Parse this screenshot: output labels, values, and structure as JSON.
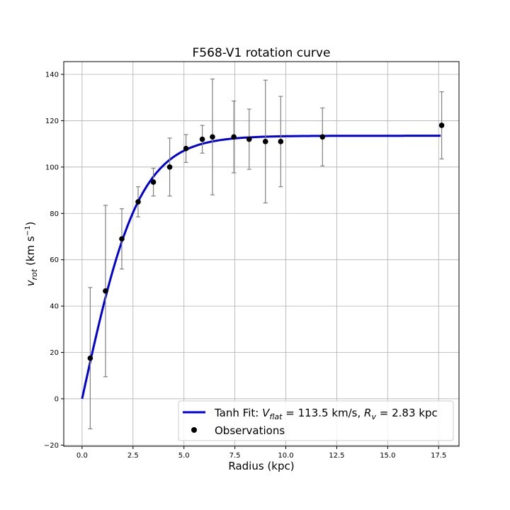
{
  "chart_data": {
    "type": "scatter",
    "title": "F568-V1 rotation curve",
    "xlabel": "Radius (kpc)",
    "ylabel": "v_rot (km s^-1)",
    "ylabel_main": "v",
    "ylabel_sub": "rot",
    "ylabel_unit_prefix": " (km s",
    "ylabel_unit_sup": "−1",
    "ylabel_unit_suffix": ")",
    "xlim": [
      -0.9,
      18.5
    ],
    "ylim": [
      -20.5,
      145.5
    ],
    "xticks": [
      0,
      2.5,
      5,
      7.5,
      10,
      12.5,
      15,
      17.5
    ],
    "xtick_labels": [
      "0.0",
      "2.5",
      "5.0",
      "7.5",
      "10.0",
      "12.5",
      "15.0",
      "17.5"
    ],
    "yticks": [
      -20,
      0,
      20,
      40,
      60,
      80,
      100,
      120,
      140
    ],
    "ytick_labels": [
      "−20",
      "0",
      "20",
      "40",
      "60",
      "80",
      "100",
      "120",
      "140"
    ],
    "grid": true,
    "legend_position": "lower-right",
    "fit": {
      "name": "Tanh Fit: V_flat = 113.5 km/s, R_v = 2.83 kpc",
      "legend_prefix": "Tanh Fit: ",
      "legend_v": "V",
      "legend_v_sub": "flat",
      "legend_v_value": " = 113.5 km/s, ",
      "legend_r": "R",
      "legend_r_sub": "v",
      "legend_r_value": " = 2.83 kpc",
      "vflat": 113.5,
      "rv": 2.83,
      "x_range": [
        0,
        17.6
      ],
      "color": "#0000dd"
    },
    "observations": {
      "name": "Observations",
      "color": "#000000",
      "errorbar_color": "#808080",
      "points": [
        {
          "x": 0.4,
          "y": 17.5,
          "err": 30.5
        },
        {
          "x": 1.15,
          "y": 46.5,
          "err": 37
        },
        {
          "x": 1.95,
          "y": 69,
          "err": 13
        },
        {
          "x": 2.75,
          "y": 85,
          "err": 6.5
        },
        {
          "x": 3.5,
          "y": 93.5,
          "err": 6
        },
        {
          "x": 4.3,
          "y": 100,
          "err": 12.5
        },
        {
          "x": 5.1,
          "y": 108,
          "err": 6
        },
        {
          "x": 5.9,
          "y": 112,
          "err": 6
        },
        {
          "x": 6.4,
          "y": 113,
          "err": 25
        },
        {
          "x": 7.45,
          "y": 113,
          "err": 15.5
        },
        {
          "x": 8.2,
          "y": 112,
          "err": 13
        },
        {
          "x": 9.0,
          "y": 111,
          "err": 26.5
        },
        {
          "x": 9.75,
          "y": 111,
          "err": 19.5
        },
        {
          "x": 11.8,
          "y": 113,
          "err": 12.5
        },
        {
          "x": 17.65,
          "y": 118,
          "err": 14.5
        }
      ]
    }
  }
}
